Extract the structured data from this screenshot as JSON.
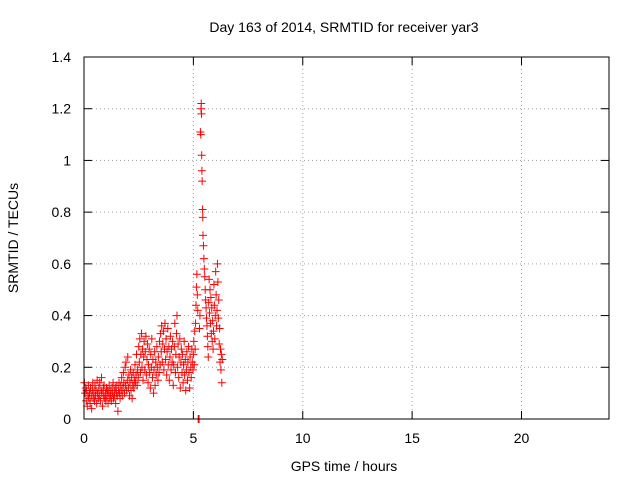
{
  "chart_data": {
    "type": "scatter",
    "title": "Day 163 of 2014, SRMTID for receiver yar3",
    "xlabel": "GPS time / hours",
    "ylabel": "SRMTID / TECUs",
    "xlim": [
      0,
      24
    ],
    "ylim": [
      0,
      1.4
    ],
    "x_ticks": [
      0,
      5,
      10,
      15,
      20
    ],
    "x_tick_labels": [
      "0",
      "5",
      "10",
      "15",
      "20"
    ],
    "y_ticks": [
      0,
      0.2,
      0.4,
      0.6,
      0.8,
      1.0,
      1.2,
      1.4
    ],
    "y_tick_labels": [
      "0",
      "0.2",
      "0.4",
      "0.6",
      "0.8",
      "1",
      "1.2",
      "1.4"
    ],
    "grid": true,
    "marker": "plus",
    "colors": {
      "series": "#ff0000",
      "grid": "#a0a0a0",
      "axis": "#000000"
    },
    "series": [
      {
        "name": "SRMTID",
        "points": [
          [
            0.02,
            0.14
          ],
          [
            0.05,
            0.1
          ],
          [
            0.08,
            0.12
          ],
          [
            0.1,
            0.07
          ],
          [
            0.12,
            0.11
          ],
          [
            0.15,
            0.05
          ],
          [
            0.18,
            0.09
          ],
          [
            0.2,
            0.13
          ],
          [
            0.22,
            0.08
          ],
          [
            0.25,
            0.1
          ],
          [
            0.28,
            0.06
          ],
          [
            0.3,
            0.12
          ],
          [
            0.33,
            0.09
          ],
          [
            0.35,
            0.04
          ],
          [
            0.38,
            0.11
          ],
          [
            0.4,
            0.14
          ],
          [
            0.42,
            0.08
          ],
          [
            0.45,
            0.1
          ],
          [
            0.48,
            0.07
          ],
          [
            0.5,
            0.13
          ],
          [
            0.52,
            0.09
          ],
          [
            0.55,
            0.11
          ],
          [
            0.58,
            0.06
          ],
          [
            0.6,
            0.15
          ],
          [
            0.62,
            0.1
          ],
          [
            0.65,
            0.08
          ],
          [
            0.68,
            0.12
          ],
          [
            0.7,
            0.09
          ],
          [
            0.72,
            0.14
          ],
          [
            0.75,
            0.07
          ],
          [
            0.78,
            0.11
          ],
          [
            0.8,
            0.16
          ],
          [
            0.82,
            0.1
          ],
          [
            0.85,
            0.05
          ],
          [
            0.88,
            0.12
          ],
          [
            0.9,
            0.09
          ],
          [
            0.92,
            0.13
          ],
          [
            0.95,
            0.08
          ],
          [
            0.98,
            0.1
          ],
          [
            1.0,
            0.07
          ],
          [
            1.03,
            0.12
          ],
          [
            1.05,
            0.09
          ],
          [
            1.08,
            0.11
          ],
          [
            1.1,
            0.06
          ],
          [
            1.13,
            0.1
          ],
          [
            1.15,
            0.13
          ],
          [
            1.18,
            0.08
          ],
          [
            1.2,
            0.11
          ],
          [
            1.23,
            0.09
          ],
          [
            1.25,
            0.07
          ],
          [
            1.28,
            0.12
          ],
          [
            1.3,
            0.1
          ],
          [
            1.33,
            0.14
          ],
          [
            1.35,
            0.08
          ],
          [
            1.38,
            0.11
          ],
          [
            1.4,
            0.09
          ],
          [
            1.43,
            0.12
          ],
          [
            1.45,
            0.06
          ],
          [
            1.48,
            0.1
          ],
          [
            1.5,
            0.13
          ],
          [
            1.52,
            0.09
          ],
          [
            1.55,
            0.03
          ],
          [
            1.58,
            0.11
          ],
          [
            1.6,
            0.14
          ],
          [
            1.62,
            0.1
          ],
          [
            1.65,
            0.08
          ],
          [
            1.68,
            0.13
          ],
          [
            1.7,
            0.11
          ],
          [
            1.72,
            0.16
          ],
          [
            1.75,
            0.09
          ],
          [
            1.78,
            0.12
          ],
          [
            1.8,
            0.18
          ],
          [
            1.82,
            0.14
          ],
          [
            1.85,
            0.1
          ],
          [
            1.88,
            0.2
          ],
          [
            1.9,
            0.13
          ],
          [
            1.92,
            0.22
          ],
          [
            1.95,
            0.11
          ],
          [
            1.98,
            0.15
          ],
          [
            2.0,
            0.24
          ],
          [
            2.03,
            0.12
          ],
          [
            2.05,
            0.17
          ],
          [
            2.08,
            0.09
          ],
          [
            2.1,
            0.14
          ],
          [
            2.13,
            0.19
          ],
          [
            2.15,
            0.11
          ],
          [
            2.18,
            0.16
          ],
          [
            2.2,
            0.08
          ],
          [
            2.23,
            0.13
          ],
          [
            2.25,
            0.18
          ],
          [
            2.28,
            0.12
          ],
          [
            2.3,
            0.15
          ],
          [
            2.33,
            0.21
          ],
          [
            2.35,
            0.14
          ],
          [
            2.38,
            0.17
          ],
          [
            2.4,
            0.25
          ],
          [
            2.43,
            0.13
          ],
          [
            2.45,
            0.19
          ],
          [
            2.48,
            0.16
          ],
          [
            2.5,
            0.28
          ],
          [
            2.53,
            0.22
          ],
          [
            2.55,
            0.31
          ],
          [
            2.58,
            0.18
          ],
          [
            2.6,
            0.25
          ],
          [
            2.63,
            0.33
          ],
          [
            2.65,
            0.2
          ],
          [
            2.68,
            0.27
          ],
          [
            2.7,
            0.15
          ],
          [
            2.73,
            0.24
          ],
          [
            2.75,
            0.3
          ],
          [
            2.78,
            0.19
          ],
          [
            2.8,
            0.26
          ],
          [
            2.83,
            0.32
          ],
          [
            2.85,
            0.17
          ],
          [
            2.88,
            0.23
          ],
          [
            2.9,
            0.29
          ],
          [
            2.93,
            0.14
          ],
          [
            2.95,
            0.21
          ],
          [
            2.98,
            0.27
          ],
          [
            3.0,
            0.18
          ],
          [
            3.03,
            0.12
          ],
          [
            3.05,
            0.25
          ],
          [
            3.08,
            0.2
          ],
          [
            3.1,
            0.31
          ],
          [
            3.13,
            0.16
          ],
          [
            3.15,
            0.23
          ],
          [
            3.18,
            0.1
          ],
          [
            3.2,
            0.19
          ],
          [
            3.23,
            0.26
          ],
          [
            3.25,
            0.13
          ],
          [
            3.28,
            0.22
          ],
          [
            3.3,
            0.17
          ],
          [
            3.33,
            0.28
          ],
          [
            3.35,
            0.2
          ],
          [
            3.38,
            0.15
          ],
          [
            3.4,
            0.24
          ],
          [
            3.43,
            0.18
          ],
          [
            3.45,
            0.3
          ],
          [
            3.48,
            0.21
          ],
          [
            3.5,
            0.33
          ],
          [
            3.53,
            0.26
          ],
          [
            3.55,
            0.36
          ],
          [
            3.58,
            0.22
          ],
          [
            3.6,
            0.29
          ],
          [
            3.63,
            0.34
          ],
          [
            3.65,
            0.19
          ],
          [
            3.68,
            0.27
          ],
          [
            3.7,
            0.37
          ],
          [
            3.73,
            0.23
          ],
          [
            3.75,
            0.31
          ],
          [
            3.78,
            0.17
          ],
          [
            3.8,
            0.26
          ],
          [
            3.83,
            0.35
          ],
          [
            3.85,
            0.21
          ],
          [
            3.88,
            0.28
          ],
          [
            3.9,
            0.15
          ],
          [
            3.93,
            0.24
          ],
          [
            3.95,
            0.32
          ],
          [
            3.98,
            0.19
          ],
          [
            4.0,
            0.27
          ],
          [
            4.03,
            0.22
          ],
          [
            4.05,
            0.3
          ],
          [
            4.08,
            0.13
          ],
          [
            4.1,
            0.21
          ],
          [
            4.13,
            0.28
          ],
          [
            4.15,
            0.37
          ],
          [
            4.18,
            0.18
          ],
          [
            4.2,
            0.25
          ],
          [
            4.23,
            0.33
          ],
          [
            4.25,
            0.4
          ],
          [
            4.28,
            0.2
          ],
          [
            4.3,
            0.29
          ],
          [
            4.33,
            0.16
          ],
          [
            4.35,
            0.24
          ],
          [
            4.38,
            0.31
          ],
          [
            4.4,
            0.12
          ],
          [
            4.43,
            0.22
          ],
          [
            4.45,
            0.27
          ],
          [
            4.48,
            0.18
          ],
          [
            4.5,
            0.25
          ],
          [
            4.53,
            0.14
          ],
          [
            4.55,
            0.21
          ],
          [
            4.58,
            0.3
          ],
          [
            4.6,
            0.17
          ],
          [
            4.63,
            0.23
          ],
          [
            4.65,
            0.11
          ],
          [
            4.68,
            0.19
          ],
          [
            4.7,
            0.26
          ],
          [
            4.73,
            0.15
          ],
          [
            4.75,
            0.22
          ],
          [
            4.78,
            0.28
          ],
          [
            4.8,
            0.18
          ],
          [
            4.83,
            0.12
          ],
          [
            4.85,
            0.24
          ],
          [
            4.88,
            0.2
          ],
          [
            4.9,
            0.16
          ],
          [
            4.93,
            0.27
          ],
          [
            4.95,
            0.22
          ],
          [
            4.98,
            0.19
          ],
          [
            5.0,
            0.25
          ],
          [
            5.02,
            0.3
          ],
          [
            5.04,
            0.21
          ],
          [
            5.06,
            0.34
          ],
          [
            5.08,
            0.27
          ],
          [
            5.1,
            0.37
          ],
          [
            5.12,
            0.44
          ],
          [
            5.14,
            0.51
          ],
          [
            5.16,
            0.56
          ],
          [
            5.18,
            0.48
          ],
          [
            5.2,
            0.42
          ],
          [
            5.22,
            0.0
          ],
          [
            5.24,
            0.0
          ],
          [
            5.26,
            0.0
          ],
          [
            5.28,
            0.35
          ],
          [
            5.3,
            0.4
          ],
          [
            5.32,
            1.11
          ],
          [
            5.34,
            1.1
          ],
          [
            5.35,
            1.2
          ],
          [
            5.36,
            1.22
          ],
          [
            5.37,
            1.18
          ],
          [
            5.38,
            1.02
          ],
          [
            5.39,
            0.96
          ],
          [
            5.4,
            0.92
          ],
          [
            5.42,
            0.81
          ],
          [
            5.43,
            0.78
          ],
          [
            5.44,
            0.71
          ],
          [
            5.46,
            0.67
          ],
          [
            5.48,
            0.62
          ],
          [
            5.5,
            0.58
          ],
          [
            5.52,
            0.55
          ],
          [
            5.54,
            0.5
          ],
          [
            5.56,
            0.46
          ],
          [
            5.58,
            0.43
          ],
          [
            5.6,
            0.39
          ],
          [
            5.62,
            0.36
          ],
          [
            5.64,
            0.32
          ],
          [
            5.66,
            0.28
          ],
          [
            5.68,
            0.24
          ],
          [
            5.7,
            0.45
          ],
          [
            5.72,
            0.54
          ],
          [
            5.74,
            0.41
          ],
          [
            5.76,
            0.5
          ],
          [
            5.78,
            0.37
          ],
          [
            5.8,
            0.47
          ],
          [
            5.82,
            0.33
          ],
          [
            5.84,
            0.43
          ],
          [
            5.86,
            0.3
          ],
          [
            5.88,
            0.38
          ],
          [
            5.9,
            0.27
          ],
          [
            5.92,
            0.34
          ],
          [
            5.94,
            0.52
          ],
          [
            5.96,
            0.44
          ],
          [
            5.98,
            0.31
          ],
          [
            6.0,
            0.4
          ],
          [
            6.02,
            0.57
          ],
          [
            6.04,
            0.48
          ],
          [
            6.06,
            0.36
          ],
          [
            6.08,
            0.42
          ],
          [
            6.1,
            0.6
          ],
          [
            6.12,
            0.53
          ],
          [
            6.14,
            0.39
          ],
          [
            6.16,
            0.46
          ],
          [
            6.18,
            0.29
          ],
          [
            6.2,
            0.35
          ],
          [
            6.22,
            0.22
          ],
          [
            6.24,
            0.27
          ],
          [
            6.26,
            0.19
          ],
          [
            6.28,
            0.25
          ],
          [
            6.3,
            0.14
          ],
          [
            6.32,
            0.23
          ]
        ]
      }
    ]
  }
}
